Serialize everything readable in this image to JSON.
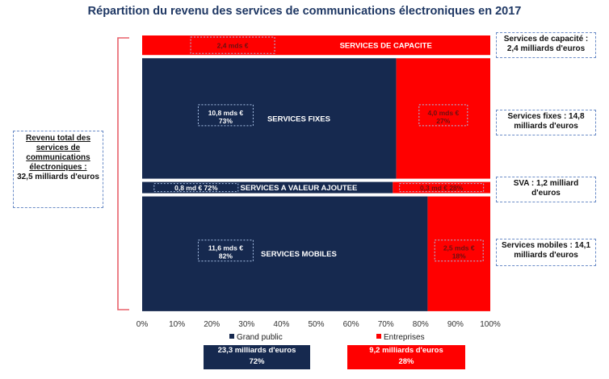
{
  "title": "Répartition du revenu des services de communications électroniques en 2017",
  "colors": {
    "grand_public": "#16294f",
    "entreprises": "#ff0000"
  },
  "total_label": {
    "line1": "Revenu total des services de communications électroniques :",
    "line2": "32,5 milliards d'euros"
  },
  "side_notes": {
    "capacite": "Services de capacité : 2,4 milliards d'euros",
    "fixes": "Services fixes : 14,8 milliards d'euros",
    "sva": "SVA : 1,2 milliard d'euros",
    "mobiles": "Services mobiles : 14,1 milliards d'euros"
  },
  "legend": {
    "grand_public": "Grand public",
    "entreprises": "Entreprises"
  },
  "bottom_boxes": {
    "grand_public": {
      "line1": "23,3  milliards d'euros",
      "line2": "72%"
    },
    "entreprises": {
      "line1": "9,2 milliards d'euros",
      "line2": "28%"
    }
  },
  "chart_data": {
    "type": "bar",
    "orientation": "horizontal-stacked-mekko",
    "title": "Répartition du revenu des services de communications électroniques en 2017",
    "x_ticks": [
      "0%",
      "10%",
      "20%",
      "30%",
      "40%",
      "50%",
      "60%",
      "70%",
      "80%",
      "90%",
      "100%"
    ],
    "xlim": [
      0,
      100
    ],
    "segments": [
      {
        "name": "SERVICES DE CAPACITE",
        "total_bn_eur": 2.4,
        "grand_public_pct": 0,
        "entreprises_pct": 100,
        "labels": [
          {
            "series": "entreprises",
            "text": "2,4 mds €"
          }
        ]
      },
      {
        "name": "SERVICES FIXES",
        "total_bn_eur": 14.8,
        "grand_public_pct": 73,
        "entreprises_pct": 27,
        "labels": [
          {
            "series": "grand_public",
            "text": "10,8 mds €",
            "pct": "73%"
          },
          {
            "series": "entreprises",
            "text": "4,0 mds €",
            "pct": "27%"
          }
        ]
      },
      {
        "name": "SERVICES A VALEUR AJOUTEE",
        "total_bn_eur": 1.2,
        "grand_public_pct": 72,
        "entreprises_pct": 28,
        "labels": [
          {
            "series": "grand_public",
            "text": "0,8 md €  72%"
          },
          {
            "series": "entreprises",
            "text": "0,3 md € 28%"
          }
        ]
      },
      {
        "name": "SERVICES MOBILES",
        "total_bn_eur": 14.1,
        "grand_public_pct": 82,
        "entreprises_pct": 18,
        "labels": [
          {
            "series": "grand_public",
            "text": "11,6 mds €",
            "pct": "82%"
          },
          {
            "series": "entreprises",
            "text": "2,5 mds €",
            "pct": "18%"
          }
        ]
      }
    ],
    "series": [
      {
        "name": "Grand public",
        "values": [
          0,
          73,
          72,
          82
        ]
      },
      {
        "name": "Entreprises",
        "values": [
          100,
          27,
          28,
          18
        ]
      }
    ],
    "legend_position": "bottom"
  }
}
